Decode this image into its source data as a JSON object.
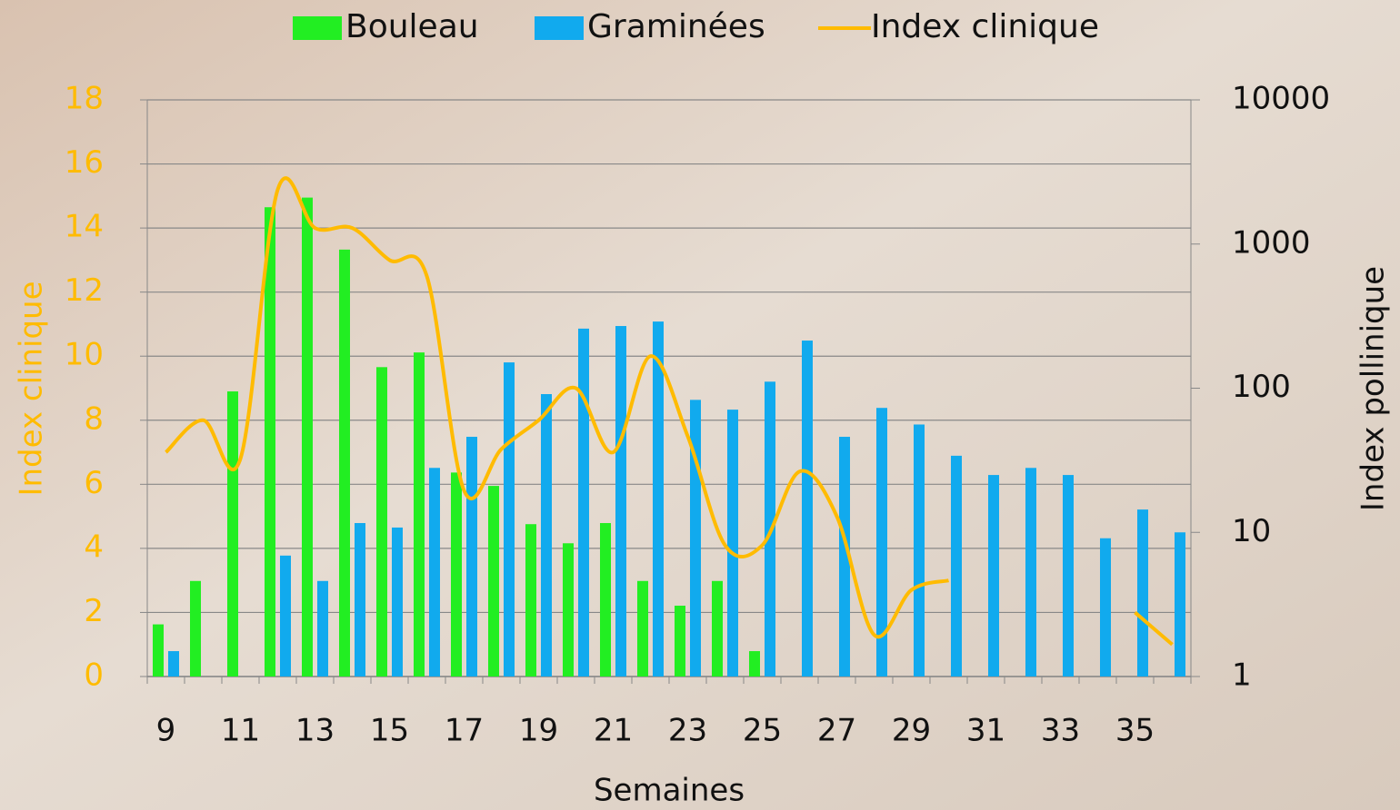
{
  "chart_data": {
    "type": "bar-line",
    "categories": [
      "9",
      null,
      "11",
      null,
      "13",
      null,
      "15",
      null,
      "17",
      null,
      "19",
      null,
      "21",
      null,
      "23",
      null,
      "25",
      null,
      "27",
      null,
      "29",
      null,
      "31",
      null,
      "33",
      null,
      "35",
      null
    ],
    "x_label": "Semaines",
    "y_label": "Index clinique",
    "y2_label": "Index pollinique",
    "ylim": [
      0,
      18
    ],
    "yticks": [
      0,
      2,
      4,
      6,
      8,
      10,
      12,
      14,
      16,
      18
    ],
    "y2lim": [
      1,
      10000
    ],
    "y2ticks": [
      1,
      10,
      100,
      1000,
      10000
    ],
    "y2log": true,
    "grid": true,
    "series": [
      {
        "name": "Bouleau",
        "type": "bar",
        "axis": "y2",
        "color": "#22ee22",
        "values": [
          2.3,
          4.6,
          95,
          1800,
          2100,
          915,
          140,
          177,
          26,
          21,
          11.4,
          8.4,
          11.6,
          4.6,
          3.1,
          4.6,
          1.5,
          null,
          null,
          null,
          null,
          null,
          null,
          null,
          null,
          null,
          null,
          null
        ]
      },
      {
        "name": "Graminées",
        "type": "bar",
        "axis": "y2",
        "color": "#11aaee",
        "values": [
          1.5,
          null,
          null,
          6.9,
          4.6,
          11.6,
          10.8,
          28,
          46,
          151,
          91,
          259,
          270,
          290,
          83,
          71,
          111,
          214,
          46,
          73,
          56,
          34,
          25,
          28,
          25,
          9.1,
          14.4,
          10
        ]
      },
      {
        "name": "Index clinique",
        "type": "line",
        "color": "#ffbb00",
        "values": [
          7.0,
          8.0,
          6.8,
          15.2,
          14.0,
          14.0,
          13.0,
          12.5,
          5.8,
          7.1,
          8.0,
          9.0,
          7.0,
          10.0,
          7.5,
          4.1,
          4.1,
          6.4,
          5.0,
          1.3,
          2.7,
          3.0,
          null,
          null,
          null,
          null,
          2.0,
          1.0
        ]
      }
    ]
  }
}
